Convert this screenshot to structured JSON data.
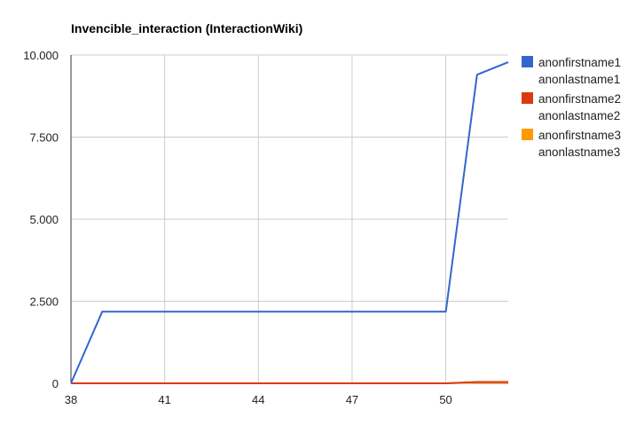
{
  "chart_data": {
    "type": "line",
    "title": "Invencible_interaction (InteractionWiki)",
    "xlabel": "",
    "ylabel": "",
    "xlim": [
      38,
      52
    ],
    "ylim": [
      0,
      10000
    ],
    "x_ticks": [
      38,
      41,
      44,
      47,
      50
    ],
    "x_tick_labels": [
      "38",
      "41",
      "44",
      "47",
      "50"
    ],
    "y_ticks": [
      0,
      2500,
      5000,
      7500,
      10000
    ],
    "y_tick_labels": [
      "0",
      "2.500",
      "5.000",
      "7.500",
      "10.000"
    ],
    "grid": true,
    "legend_position": "right",
    "series": [
      {
        "name": "anonfirstname1 anonlastname1",
        "legend_lines": [
          "anonfirstname1",
          "anonlastname1"
        ],
        "color": "#3366cc",
        "points": [
          [
            38,
            0
          ],
          [
            39,
            2180
          ],
          [
            50,
            2180
          ],
          [
            51,
            9400
          ],
          [
            52,
            9780
          ]
        ]
      },
      {
        "name": "anonfirstname2 anonlastname2",
        "legend_lines": [
          "anonfirstname2",
          "anonlastname2"
        ],
        "color": "#dc3912",
        "points": [
          [
            38,
            0
          ],
          [
            50,
            0
          ],
          [
            51,
            40
          ],
          [
            52,
            40
          ]
        ]
      },
      {
        "name": "anonfirstname3 anonlastname3",
        "legend_lines": [
          "anonfirstname3",
          "anonlastname3"
        ],
        "color": "#ff9900",
        "points": [
          [
            38,
            0
          ],
          [
            50,
            0
          ],
          [
            51,
            20
          ],
          [
            52,
            20
          ]
        ]
      }
    ]
  }
}
